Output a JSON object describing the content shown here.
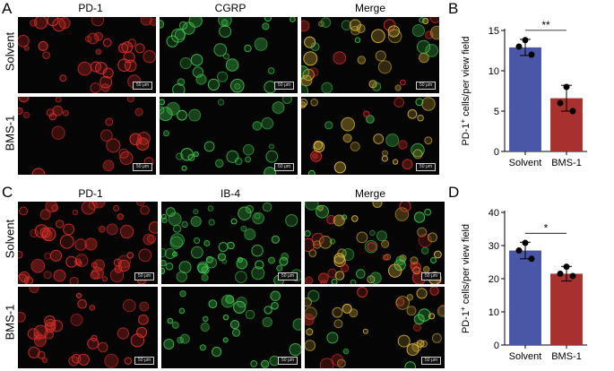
{
  "panels": {
    "A": {
      "letter": "A",
      "columns": [
        "PD-1",
        "CGRP",
        "Merge"
      ],
      "rows": [
        "Solvent",
        "BMS-1"
      ]
    },
    "C": {
      "letter": "C",
      "columns": [
        "PD-1",
        "IB-4",
        "Merge"
      ],
      "rows": [
        "Solvent",
        "BMS-1"
      ]
    },
    "scale_bar_label": "50 μm"
  },
  "colors": {
    "solvent_bar": "#4a57a6",
    "bms_bar": "#a8302e",
    "pd1_channel": "#d9302a",
    "green_channel": "#3fbf4a",
    "merge_channel": "#d8b23a"
  },
  "chart_data": [
    {
      "type": "bar",
      "panel": "B",
      "categories": [
        "Solvent",
        "BMS-1"
      ],
      "values": [
        12.9,
        6.6
      ],
      "errors": [
        1.0,
        1.6
      ],
      "points": [
        [
          13.8,
          13.0,
          12.0
        ],
        [
          8.0,
          6.0,
          5.0
        ]
      ],
      "title": "",
      "xlabel": "",
      "ylabel": "PD-1+ cells/per view field",
      "ylabel_main": "PD-1",
      "ylabel_sup": "+",
      "ylabel_rest": " cells/per view field",
      "ylim": [
        0,
        15
      ],
      "yticks": [
        0,
        5,
        10,
        15
      ],
      "significance": "**"
    },
    {
      "type": "bar",
      "panel": "D",
      "categories": [
        "Solvent",
        "BMS-1"
      ],
      "values": [
        28.5,
        21.5
      ],
      "errors": [
        2.5,
        2.2
      ],
      "points": [
        [
          30.8,
          28.5,
          26.0
        ],
        [
          23.6,
          21.5,
          20.8
        ]
      ],
      "title": "",
      "xlabel": "",
      "ylabel": "PD-1+ cells/per view field",
      "ylabel_main": "PD-1",
      "ylabel_sup": "+",
      "ylabel_rest": " cells/per view field",
      "ylim": [
        0,
        40
      ],
      "yticks": [
        0,
        10,
        20,
        30,
        40
      ],
      "significance": "*"
    }
  ]
}
